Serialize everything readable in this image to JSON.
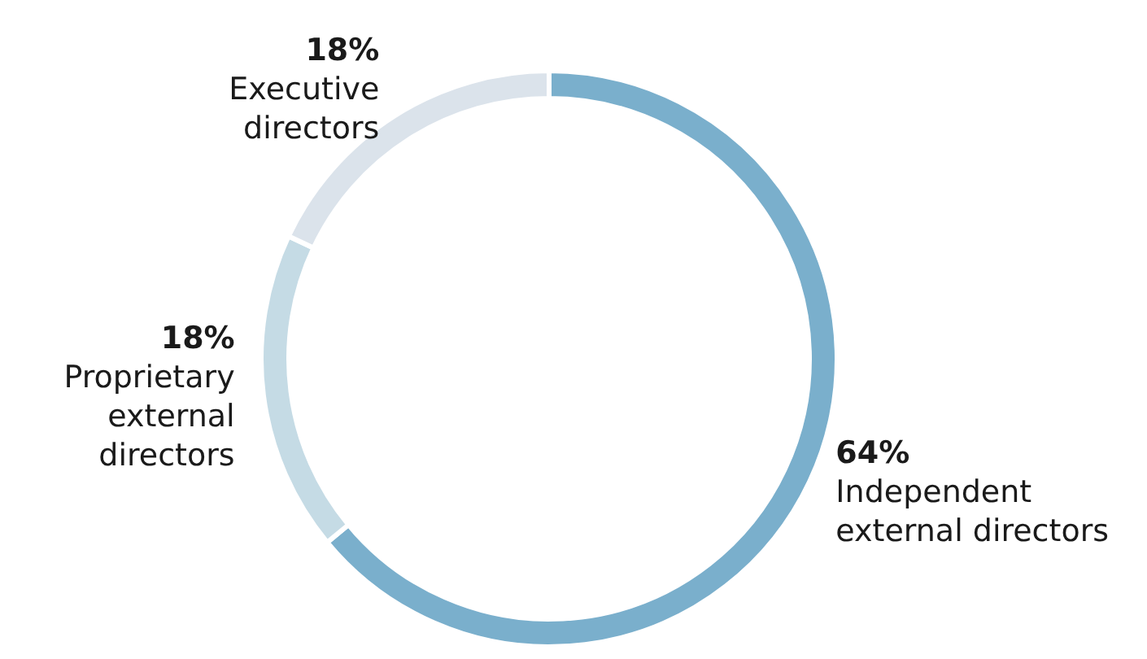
{
  "chart_data": {
    "type": "donut",
    "categories": [
      "Independent\nexternal directors",
      "Proprietary\nexternal\ndirectors",
      "Executive\ndirectors"
    ],
    "values": [
      64,
      18,
      18
    ],
    "colors": [
      "#7aafcc",
      "#c5dbe5",
      "#dbe3eb"
    ],
    "value_labels": [
      "64%",
      "18%",
      "18%"
    ]
  }
}
